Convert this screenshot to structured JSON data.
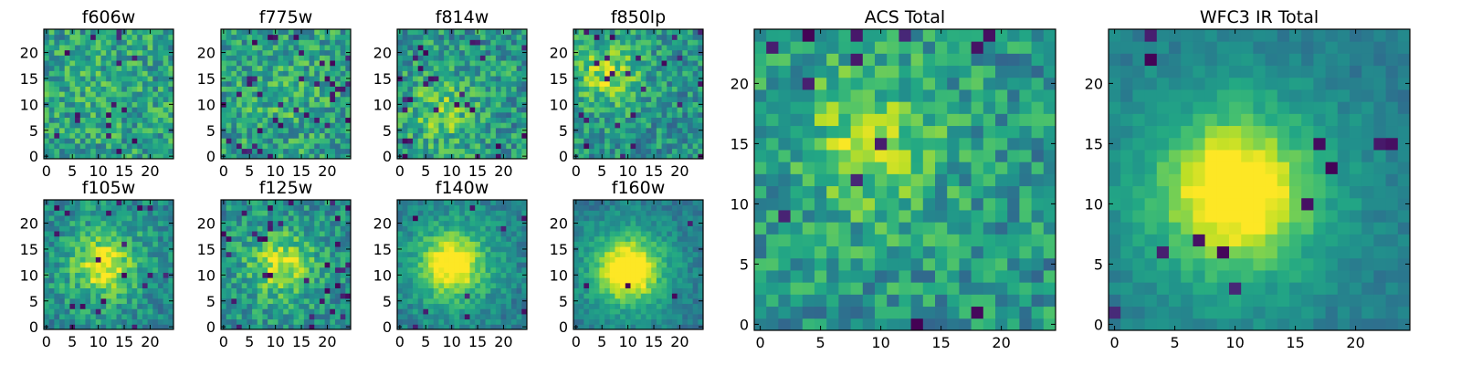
{
  "figure": {
    "colormap": "viridis",
    "colors": {
      "background": "#ffffff",
      "axes": "#000000",
      "low": "#440154",
      "mid": "#21918c",
      "high": "#fde725"
    }
  },
  "chart_data": [
    {
      "type": "heatmap",
      "title": "f606w",
      "grid_size": 25,
      "xticks": [
        0,
        5,
        10,
        15,
        20
      ],
      "yticks": [
        0,
        5,
        10,
        15,
        20
      ],
      "xlim": [
        -0.5,
        24.5
      ],
      "ylim": [
        -0.5,
        24.5
      ],
      "value_range": [
        0,
        1
      ],
      "peak": [
        10,
        14
      ],
      "peak_strength": 0.05,
      "noise_level": 0.22,
      "seed": 11,
      "dark_pixel_rate": 0.03
    },
    {
      "type": "heatmap",
      "title": "f775w",
      "grid_size": 25,
      "xticks": [
        0,
        5,
        10,
        15,
        20
      ],
      "yticks": [
        0,
        5,
        10,
        15,
        20
      ],
      "xlim": [
        -0.5,
        24.5
      ],
      "ylim": [
        -0.5,
        24.5
      ],
      "value_range": [
        0,
        1
      ],
      "peak": [
        11,
        12
      ],
      "peak_strength": 0.08,
      "noise_level": 0.22,
      "seed": 23,
      "dark_pixel_rate": 0.05
    },
    {
      "type": "heatmap",
      "title": "f814w",
      "grid_size": 25,
      "xticks": [
        0,
        5,
        10,
        15,
        20
      ],
      "yticks": [
        0,
        5,
        10,
        15,
        20
      ],
      "xlim": [
        -0.5,
        24.5
      ],
      "ylim": [
        -0.5,
        24.5
      ],
      "value_range": [
        0,
        1
      ],
      "peak": [
        8,
        9
      ],
      "peak_strength": 0.2,
      "noise_level": 0.22,
      "seed": 37,
      "dark_pixel_rate": 0.05
    },
    {
      "type": "heatmap",
      "title": "f850lp",
      "grid_size": 25,
      "xticks": [
        0,
        5,
        10,
        15,
        20
      ],
      "yticks": [
        0,
        5,
        10,
        15,
        20
      ],
      "xlim": [
        -0.5,
        24.5
      ],
      "ylim": [
        -0.5,
        24.5
      ],
      "value_range": [
        0,
        1
      ],
      "peak": [
        6,
        16
      ],
      "peak_strength": 0.28,
      "noise_level": 0.2,
      "seed": 41,
      "dark_pixel_rate": 0.05
    },
    {
      "type": "heatmap",
      "title": "f105w",
      "grid_size": 25,
      "xticks": [
        0,
        5,
        10,
        15,
        20
      ],
      "yticks": [
        0,
        5,
        10,
        15,
        20
      ],
      "xlim": [
        -0.5,
        24.5
      ],
      "ylim": [
        -0.5,
        24.5
      ],
      "value_range": [
        0,
        1
      ],
      "peak": [
        11,
        12
      ],
      "peak_strength": 0.42,
      "noise_level": 0.17,
      "seed": 53,
      "dark_pixel_rate": 0.04
    },
    {
      "type": "heatmap",
      "title": "f125w",
      "grid_size": 25,
      "xticks": [
        0,
        5,
        10,
        15,
        20
      ],
      "yticks": [
        0,
        5,
        10,
        15,
        20
      ],
      "xlim": [
        -0.5,
        24.5
      ],
      "ylim": [
        -0.5,
        24.5
      ],
      "value_range": [
        0,
        1
      ],
      "peak": [
        11,
        12
      ],
      "peak_strength": 0.35,
      "noise_level": 0.18,
      "seed": 67,
      "dark_pixel_rate": 0.05
    },
    {
      "type": "heatmap",
      "title": "f140w",
      "grid_size": 25,
      "xticks": [
        0,
        5,
        10,
        15,
        20
      ],
      "yticks": [
        0,
        5,
        10,
        15,
        20
      ],
      "xlim": [
        -0.5,
        24.5
      ],
      "ylim": [
        -0.5,
        24.5
      ],
      "value_range": [
        0,
        1
      ],
      "peak": [
        10,
        12
      ],
      "peak_strength": 0.55,
      "noise_level": 0.12,
      "seed": 79,
      "dark_pixel_rate": 0.02
    },
    {
      "type": "heatmap",
      "title": "f160w",
      "grid_size": 25,
      "xticks": [
        0,
        5,
        10,
        15,
        20
      ],
      "yticks": [
        0,
        5,
        10,
        15,
        20
      ],
      "xlim": [
        -0.5,
        24.5
      ],
      "ylim": [
        -0.5,
        24.5
      ],
      "value_range": [
        0,
        1
      ],
      "peak": [
        10,
        11
      ],
      "peak_strength": 0.65,
      "noise_level": 0.1,
      "seed": 83,
      "dark_pixel_rate": 0.01
    },
    {
      "type": "heatmap",
      "title": "ACS Total",
      "grid_size": 25,
      "xticks": [
        0,
        5,
        10,
        15,
        20
      ],
      "yticks": [
        0,
        5,
        10,
        15,
        20
      ],
      "xlim": [
        -0.5,
        24.5
      ],
      "ylim": [
        -0.5,
        24.5
      ],
      "value_range": [
        0,
        1
      ],
      "peak": [
        9,
        15
      ],
      "peak_strength": 0.25,
      "noise_level": 0.2,
      "seed": 97,
      "dark_pixel_rate": 0.03
    },
    {
      "type": "heatmap",
      "title": "WFC3 IR Total",
      "grid_size": 25,
      "xticks": [
        0,
        5,
        10,
        15,
        20
      ],
      "yticks": [
        0,
        5,
        10,
        15,
        20
      ],
      "xlim": [
        -0.5,
        24.5
      ],
      "ylim": [
        -0.5,
        24.5
      ],
      "value_range": [
        0,
        1
      ],
      "peak": [
        10,
        11
      ],
      "peak_strength": 0.62,
      "noise_level": 0.07,
      "seed": 101,
      "dark_pixel_rate": 0.015
    }
  ]
}
